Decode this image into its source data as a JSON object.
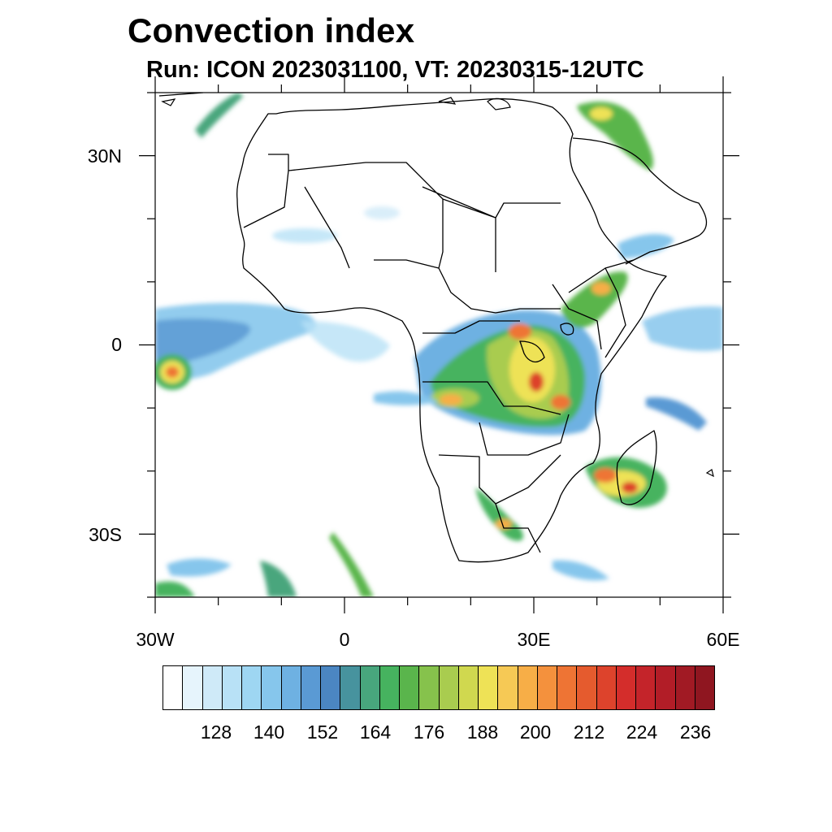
{
  "title": "Convection index",
  "subtitle": "Run: ICON 2023031100,  VT: 20230315-12UTC",
  "axes": {
    "lon_range": [
      -30,
      60
    ],
    "lat_range": [
      -40,
      40
    ],
    "lon_ticks": [
      {
        "lon": -30,
        "label": "30W"
      },
      {
        "lon": 0,
        "label": "0"
      },
      {
        "lon": 30,
        "label": "30E"
      },
      {
        "lon": 60,
        "label": "60E"
      }
    ],
    "lat_ticks": [
      {
        "lat": 30,
        "label": "30N"
      },
      {
        "lat": 0,
        "label": "0"
      },
      {
        "lat": -30,
        "label": "30S"
      }
    ]
  },
  "colorbar": {
    "colors": [
      "#ffffff",
      "#e6f4fc",
      "#cfeaf8",
      "#b8e1f6",
      "#9ed6f2",
      "#86c6ec",
      "#6eb1e2",
      "#5a9ad4",
      "#4b86c2",
      "#47939e",
      "#48a67d",
      "#46b35f",
      "#5ab54c",
      "#86c24c",
      "#a9cc4f",
      "#d0d84f",
      "#eee256",
      "#f6c955",
      "#f7ae47",
      "#f4913d",
      "#ee7434",
      "#e55b2e",
      "#dd432c",
      "#d42d2b",
      "#c4242a",
      "#b21d27",
      "#a11a24",
      "#8f1620"
    ],
    "labels": [
      "128",
      "140",
      "152",
      "164",
      "176",
      "188",
      "200",
      "212",
      "224",
      "236"
    ]
  }
}
